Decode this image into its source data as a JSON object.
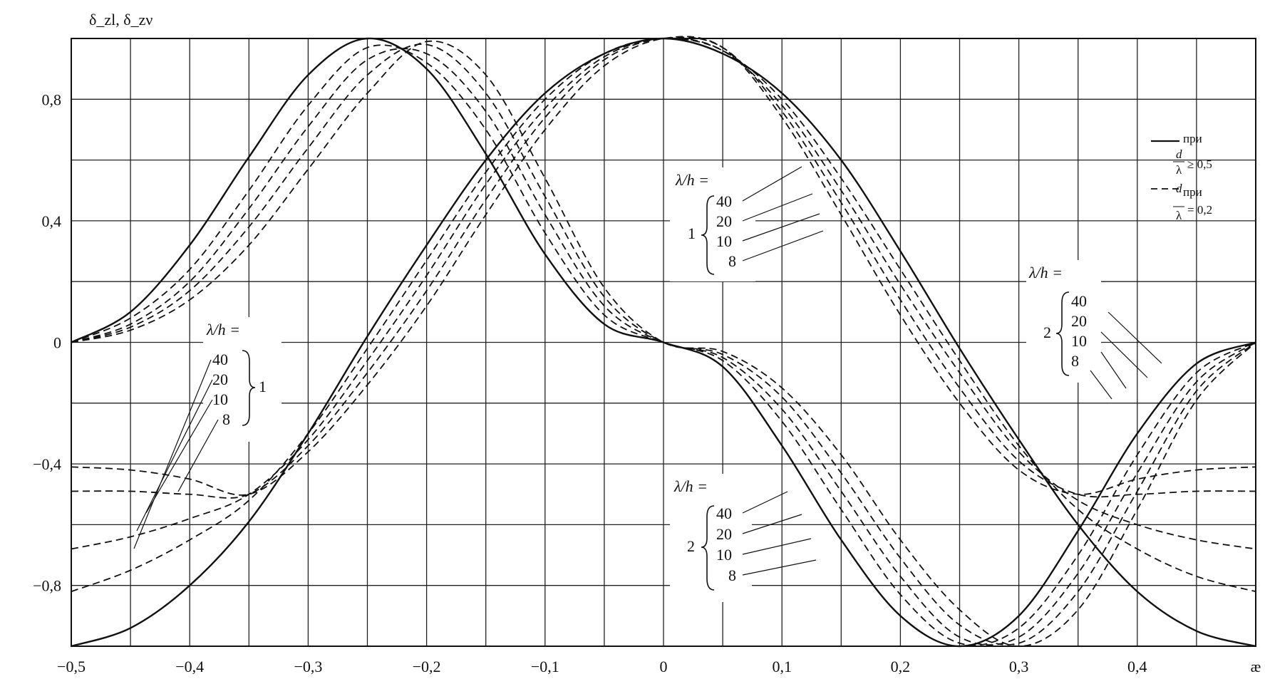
{
  "chart_data": {
    "type": "line",
    "y_label": "δ_zl, δ_zν",
    "x_label": "æ",
    "xlim": [
      -0.5,
      0.5
    ],
    "ylim": [
      -1.0,
      1.0
    ],
    "grid": true,
    "x_ticks": [
      "−0,5",
      "−0,4",
      "−0,3",
      "−0,2",
      "−0,1",
      "0",
      "0,1",
      "0,2",
      "0,3",
      "0,4",
      "æ"
    ],
    "y_ticks": [
      "0,8",
      "0,4",
      "0",
      "−0,4",
      "−0,8"
    ],
    "y_tick_values": [
      0.8,
      0.4,
      0,
      -0.4,
      -0.8
    ],
    "legend": {
      "placement": "top-right",
      "solid_label": "при",
      "solid_cond": "≥ 0,5",
      "dashed_label": "при",
      "dashed_cond": "= 0,2",
      "frac_num": "d",
      "frac_den": "λ"
    },
    "annotation_groups": [
      {
        "header": "λ/h =",
        "group": "1",
        "values": [
          "40",
          "20",
          "10",
          "8"
        ]
      },
      {
        "header": "λ/h =",
        "group": "1",
        "values": [
          "40",
          "20",
          "10",
          "8"
        ]
      },
      {
        "header": "λ/h =",
        "group": "2",
        "values": [
          "40",
          "20",
          "10",
          "8"
        ]
      },
      {
        "header": "λ/h =",
        "group": "2",
        "values": [
          "40",
          "20",
          "10",
          "8"
        ]
      }
    ],
    "series": [
      {
        "family": "1",
        "style": "solid",
        "x": [
          -0.5,
          -0.45,
          -0.4,
          -0.35,
          -0.3,
          -0.25,
          -0.2,
          -0.15,
          -0.1,
          -0.05,
          0,
          0.05,
          0.1,
          0.15,
          0.2,
          0.25,
          0.3,
          0.35,
          0.4,
          0.45,
          0.5
        ],
        "y": [
          0,
          0.1,
          0.32,
          0.61,
          0.88,
          1.0,
          0.9,
          0.62,
          0.29,
          0.06,
          0,
          -0.08,
          -0.34,
          -0.65,
          -0.9,
          -1.0,
          -0.9,
          -0.62,
          -0.3,
          -0.07,
          0
        ]
      },
      {
        "family": "1",
        "style": "dashed",
        "x": [
          -0.5,
          -0.45,
          -0.4,
          -0.35,
          -0.3,
          -0.25,
          -0.2,
          -0.15,
          -0.1,
          -0.05,
          0,
          0.05,
          0.1,
          0.15,
          0.2,
          0.25,
          0.3,
          0.35,
          0.4,
          0.45,
          0.5
        ],
        "y": [
          0,
          0.08,
          0.24,
          0.5,
          0.78,
          0.97,
          0.92,
          0.7,
          0.36,
          0.09,
          0,
          -0.06,
          -0.26,
          -0.55,
          -0.83,
          -0.99,
          -0.94,
          -0.7,
          -0.37,
          -0.1,
          0
        ]
      },
      {
        "family": "1",
        "style": "dashed",
        "x": [
          -0.5,
          -0.45,
          -0.4,
          -0.35,
          -0.3,
          -0.25,
          -0.2,
          -0.15,
          -0.1,
          -0.05,
          0,
          0.05,
          0.1,
          0.15,
          0.2,
          0.25,
          0.3,
          0.35,
          0.4,
          0.45,
          0.5
        ],
        "y": [
          0,
          0.06,
          0.2,
          0.44,
          0.71,
          0.93,
          0.95,
          0.76,
          0.42,
          0.12,
          0,
          -0.05,
          -0.22,
          -0.49,
          -0.77,
          -0.97,
          -0.97,
          -0.76,
          -0.43,
          -0.13,
          0
        ]
      },
      {
        "family": "1",
        "style": "dashed",
        "x": [
          -0.5,
          -0.45,
          -0.4,
          -0.35,
          -0.3,
          -0.25,
          -0.2,
          -0.15,
          -0.1,
          -0.05,
          0,
          0.05,
          0.1,
          0.15,
          0.2,
          0.25,
          0.3,
          0.35,
          0.4,
          0.45,
          0.5
        ],
        "y": [
          0,
          0.05,
          0.17,
          0.38,
          0.64,
          0.88,
          0.98,
          0.82,
          0.48,
          0.15,
          0,
          -0.04,
          -0.18,
          -0.43,
          -0.71,
          -0.93,
          -0.99,
          -0.82,
          -0.49,
          -0.16,
          0
        ]
      },
      {
        "family": "1",
        "style": "dashed",
        "x": [
          -0.5,
          -0.45,
          -0.4,
          -0.35,
          -0.3,
          -0.25,
          -0.2,
          -0.15,
          -0.1,
          -0.05,
          0,
          0.05,
          0.1,
          0.15,
          0.2,
          0.25,
          0.3,
          0.35,
          0.4,
          0.45,
          0.5
        ],
        "y": [
          0,
          0.04,
          0.14,
          0.32,
          0.57,
          0.82,
          0.99,
          0.88,
          0.54,
          0.18,
          0,
          -0.03,
          -0.15,
          -0.37,
          -0.65,
          -0.88,
          -1.0,
          -0.88,
          -0.55,
          -0.19,
          0
        ]
      },
      {
        "family": "2",
        "style": "solid",
        "x": [
          -0.5,
          -0.45,
          -0.4,
          -0.35,
          -0.3,
          -0.25,
          -0.2,
          -0.15,
          -0.1,
          -0.05,
          0,
          0.05,
          0.1,
          0.15,
          0.2,
          0.25,
          0.3,
          0.35,
          0.4,
          0.45,
          0.5
        ],
        "y": [
          -1.0,
          -0.94,
          -0.8,
          -0.59,
          -0.3,
          0.02,
          0.32,
          0.6,
          0.82,
          0.95,
          1.0,
          0.95,
          0.82,
          0.6,
          0.3,
          -0.02,
          -0.32,
          -0.6,
          -0.82,
          -0.95,
          -1.0
        ]
      },
      {
        "family": "2",
        "style": "dashed",
        "x": [
          -0.5,
          -0.45,
          -0.4,
          -0.35,
          -0.3,
          -0.25,
          -0.2,
          -0.15,
          -0.1,
          -0.05,
          0,
          0.05,
          0.1,
          0.15,
          0.2,
          0.25,
          0.3,
          0.35,
          0.4,
          0.45,
          0.5
        ],
        "y": [
          -0.82,
          -0.75,
          -0.65,
          -0.52,
          -0.3,
          -0.02,
          0.27,
          0.56,
          0.8,
          0.95,
          1.0,
          0.96,
          0.8,
          0.54,
          0.24,
          -0.06,
          -0.34,
          -0.55,
          -0.68,
          -0.77,
          -0.82
        ]
      },
      {
        "family": "2",
        "style": "dashed",
        "x": [
          -0.5,
          -0.45,
          -0.4,
          -0.35,
          -0.3,
          -0.25,
          -0.2,
          -0.15,
          -0.1,
          -0.05,
          0,
          0.05,
          0.1,
          0.15,
          0.2,
          0.25,
          0.3,
          0.35,
          0.4,
          0.45,
          0.5
        ],
        "y": [
          -0.68,
          -0.64,
          -0.58,
          -0.5,
          -0.32,
          -0.06,
          0.22,
          0.52,
          0.77,
          0.94,
          1.0,
          0.96,
          0.78,
          0.5,
          0.19,
          -0.1,
          -0.36,
          -0.52,
          -0.6,
          -0.65,
          -0.68
        ]
      },
      {
        "family": "2",
        "style": "dashed",
        "x": [
          -0.5,
          -0.45,
          -0.4,
          -0.35,
          -0.3,
          -0.25,
          -0.2,
          -0.15,
          -0.1,
          -0.05,
          0,
          0.05,
          0.1,
          0.15,
          0.2,
          0.25,
          0.3,
          0.35,
          0.4,
          0.45,
          0.5
        ],
        "y": [
          -0.49,
          -0.49,
          -0.5,
          -0.5,
          -0.34,
          -0.1,
          0.17,
          0.47,
          0.74,
          0.93,
          1.0,
          0.97,
          0.76,
          0.46,
          0.14,
          -0.15,
          -0.39,
          -0.5,
          -0.5,
          -0.49,
          -0.49
        ]
      },
      {
        "family": "2",
        "style": "dashed",
        "x": [
          -0.5,
          -0.45,
          -0.4,
          -0.35,
          -0.3,
          -0.25,
          -0.2,
          -0.15,
          -0.1,
          -0.05,
          0,
          0.05,
          0.1,
          0.15,
          0.2,
          0.25,
          0.3,
          0.35,
          0.4,
          0.45,
          0.5
        ],
        "y": [
          -0.41,
          -0.42,
          -0.45,
          -0.5,
          -0.36,
          -0.14,
          0.12,
          0.42,
          0.7,
          0.91,
          1.0,
          0.97,
          0.74,
          0.42,
          0.09,
          -0.2,
          -0.42,
          -0.5,
          -0.45,
          -0.42,
          -0.41
        ]
      }
    ]
  }
}
